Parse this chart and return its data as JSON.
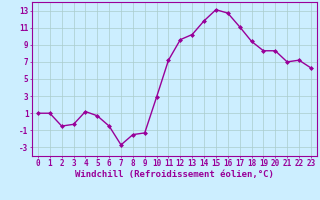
{
  "x": [
    0,
    1,
    2,
    3,
    4,
    5,
    6,
    7,
    8,
    9,
    10,
    11,
    12,
    13,
    14,
    15,
    16,
    17,
    18,
    19,
    20,
    21,
    22,
    23
  ],
  "y": [
    1,
    1,
    -0.5,
    -0.3,
    1.2,
    0.7,
    -0.5,
    -2.7,
    -1.5,
    -1.3,
    2.9,
    7.2,
    9.6,
    10.2,
    11.8,
    13.1,
    12.7,
    11.1,
    9.4,
    8.3,
    8.3,
    7.0,
    7.2,
    6.3
  ],
  "line_color": "#990099",
  "marker": "D",
  "marker_size": 2,
  "linewidth": 1.0,
  "xlabel": "Windchill (Refroidissement éolien,°C)",
  "xlabel_fontsize": 6.5,
  "ylabel_ticks": [
    -3,
    -1,
    1,
    3,
    5,
    7,
    9,
    11,
    13
  ],
  "xlim": [
    -0.5,
    23.5
  ],
  "ylim": [
    -4,
    14
  ],
  "background_color": "#cceeff",
  "grid_color": "#aacccc",
  "tick_fontsize": 5.5
}
